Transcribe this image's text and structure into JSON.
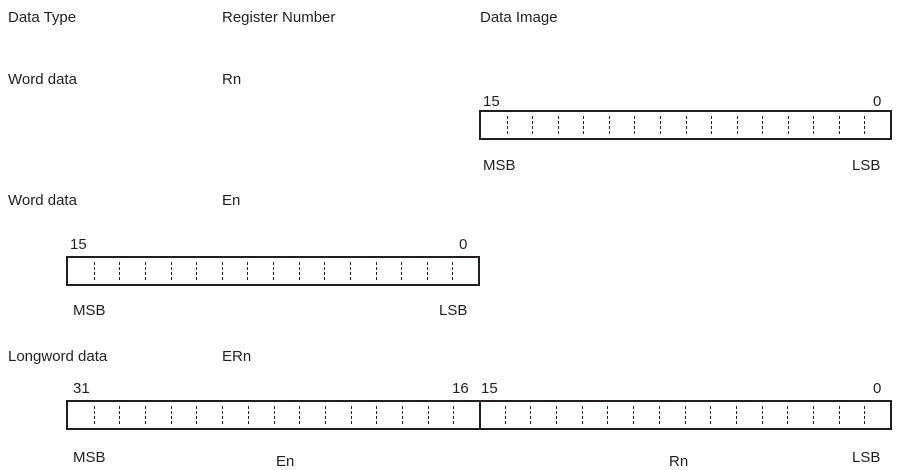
{
  "headers": {
    "data_type": "Data Type",
    "register_number": "Register Number",
    "data_image": "Data Image"
  },
  "rows": [
    {
      "data_type": "Word data",
      "register": "Rn",
      "bit_high": "15",
      "bit_low": "0",
      "msb": "MSB",
      "lsb": "LSB",
      "bits": 16
    },
    {
      "data_type": "Word data",
      "register": "En",
      "bit_high": "15",
      "bit_low": "0",
      "msb": "MSB",
      "lsb": "LSB",
      "bits": 16
    },
    {
      "data_type": "Longword data",
      "register": "ERn",
      "bit_high": "31",
      "bit_mid_high": "16",
      "bit_mid_low": "15",
      "bit_low": "0",
      "msb": "MSB",
      "lsb": "LSB",
      "upper_half": "En",
      "lower_half": "Rn",
      "bits": 32
    }
  ]
}
